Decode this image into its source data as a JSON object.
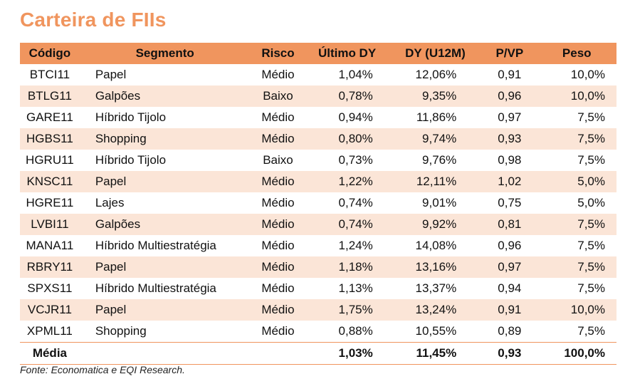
{
  "title": "Carteira de FIIs",
  "columns": [
    "Código",
    "Segmento",
    "Risco",
    "Último DY",
    "DY (U12M)",
    "P/VP",
    "Peso"
  ],
  "rows": [
    {
      "codigo": "BTCI11",
      "segmento": "Papel",
      "risco": "Médio",
      "ultimo_dy": "1,04%",
      "dy_u12m": "12,06%",
      "pvp": "0,91",
      "peso": "10,0%"
    },
    {
      "codigo": "BTLG11",
      "segmento": "Galpões",
      "risco": "Baixo",
      "ultimo_dy": "0,78%",
      "dy_u12m": "9,35%",
      "pvp": "0,96",
      "peso": "10,0%"
    },
    {
      "codigo": "GARE11",
      "segmento": "Híbrido Tijolo",
      "risco": "Médio",
      "ultimo_dy": "0,94%",
      "dy_u12m": "11,86%",
      "pvp": "0,97",
      "peso": "7,5%"
    },
    {
      "codigo": "HGBS11",
      "segmento": "Shopping",
      "risco": "Médio",
      "ultimo_dy": "0,80%",
      "dy_u12m": "9,74%",
      "pvp": "0,93",
      "peso": "7,5%"
    },
    {
      "codigo": "HGRU11",
      "segmento": "Híbrido Tijolo",
      "risco": "Baixo",
      "ultimo_dy": "0,73%",
      "dy_u12m": "9,76%",
      "pvp": "0,98",
      "peso": "7,5%"
    },
    {
      "codigo": "KNSC11",
      "segmento": "Papel",
      "risco": "Médio",
      "ultimo_dy": "1,22%",
      "dy_u12m": "12,11%",
      "pvp": "1,02",
      "peso": "5,0%"
    },
    {
      "codigo": "HGRE11",
      "segmento": "Lajes",
      "risco": "Médio",
      "ultimo_dy": "0,74%",
      "dy_u12m": "9,01%",
      "pvp": "0,75",
      "peso": "5,0%"
    },
    {
      "codigo": "LVBI11",
      "segmento": "Galpões",
      "risco": "Médio",
      "ultimo_dy": "0,74%",
      "dy_u12m": "9,92%",
      "pvp": "0,81",
      "peso": "7,5%"
    },
    {
      "codigo": "MANA11",
      "segmento": "Híbrido Multiestratégia",
      "risco": "Médio",
      "ultimo_dy": "1,24%",
      "dy_u12m": "14,08%",
      "pvp": "0,96",
      "peso": "7,5%"
    },
    {
      "codigo": "RBRY11",
      "segmento": "Papel",
      "risco": "Médio",
      "ultimo_dy": "1,18%",
      "dy_u12m": "13,16%",
      "pvp": "0,97",
      "peso": "7,5%"
    },
    {
      "codigo": "SPXS11",
      "segmento": "Híbrido Multiestratégia",
      "risco": "Médio",
      "ultimo_dy": "1,13%",
      "dy_u12m": "13,37%",
      "pvp": "0,94",
      "peso": "7,5%"
    },
    {
      "codigo": "VCJR11",
      "segmento": "Papel",
      "risco": "Médio",
      "ultimo_dy": "1,75%",
      "dy_u12m": "13,24%",
      "pvp": "0,91",
      "peso": "10,0%"
    },
    {
      "codigo": "XPML11",
      "segmento": "Shopping",
      "risco": "Médio",
      "ultimo_dy": "0,88%",
      "dy_u12m": "10,55%",
      "pvp": "0,89",
      "peso": "7,5%"
    }
  ],
  "footer": {
    "label": "Média",
    "ultimo_dy": "1,03%",
    "dy_u12m": "11,45%",
    "pvp": "0,93",
    "peso": "100,0%"
  },
  "source": "Fonte: Economatica e EQI Research.",
  "colors": {
    "accent": "#f0955e",
    "row_stripe": "#fbe5d7"
  }
}
